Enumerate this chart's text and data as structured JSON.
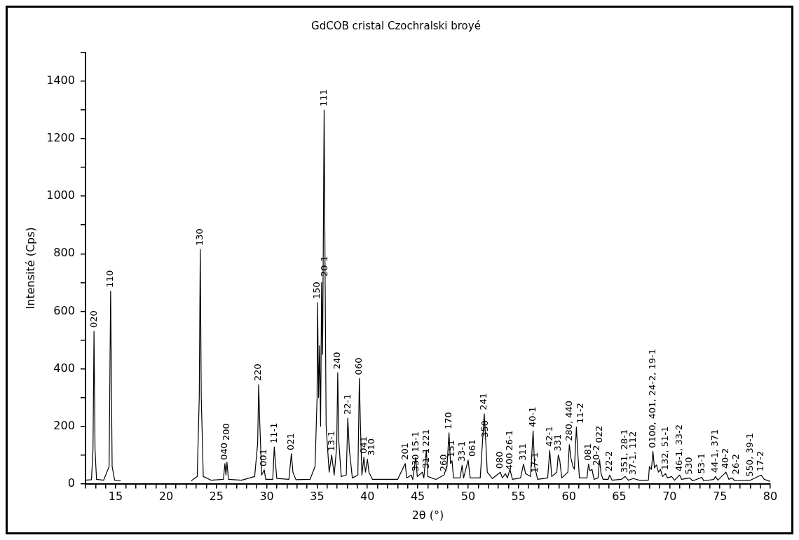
{
  "chart_data": {
    "type": "line",
    "title": "GdCOB cristal Czochralski broyé",
    "xlabel": "2θ (°)",
    "ylabel": "Intensité (Cps)",
    "xlim": [
      12,
      80
    ],
    "xticks": [
      {
        "value": 12,
        "label": null
      },
      {
        "value": 13,
        "label": null
      },
      {
        "value": 14,
        "label": null
      },
      15,
      {
        "value": 16,
        "label": null
      },
      {
        "value": 17,
        "label": null
      },
      {
        "value": 18,
        "label": null
      },
      {
        "value": 19,
        "label": null
      },
      20,
      {
        "value": 21,
        "label": null
      },
      {
        "value": 22,
        "label": null
      },
      {
        "value": 23,
        "label": null
      },
      {
        "value": 24,
        "label": null
      },
      25,
      {
        "value": 26,
        "label": null
      },
      {
        "value": 27,
        "label": null
      },
      {
        "value": 28,
        "label": null
      },
      {
        "value": 29,
        "label": null
      },
      30,
      {
        "value": 31,
        "label": null
      },
      {
        "value": 32,
        "label": null
      },
      {
        "value": 33,
        "label": null
      },
      {
        "value": 34,
        "label": null
      },
      35,
      {
        "value": 36,
        "label": null
      },
      {
        "value": 37,
        "label": null
      },
      {
        "value": 38,
        "label": null
      },
      {
        "value": 39,
        "label": null
      },
      40,
      {
        "value": 41,
        "label": null
      },
      {
        "value": 42,
        "label": null
      },
      {
        "value": 43,
        "label": null
      },
      {
        "value": 44,
        "label": null
      },
      45,
      {
        "value": 46,
        "label": null
      },
      {
        "value": 47,
        "label": null
      },
      {
        "value": 48,
        "label": null
      },
      {
        "value": 49,
        "label": null
      },
      50,
      {
        "value": 51,
        "label": null
      },
      {
        "value": 52,
        "label": null
      },
      {
        "value": 53,
        "label": null
      },
      {
        "value": 54,
        "label": null
      },
      55,
      {
        "value": 56,
        "label": null
      },
      {
        "value": 57,
        "label": null
      },
      {
        "value": 58,
        "label": null
      },
      {
        "value": 59,
        "label": null
      },
      60,
      {
        "value": 61,
        "label": null
      },
      {
        "value": 62,
        "label": null
      },
      {
        "value": 63,
        "label": null
      },
      {
        "value": 64,
        "label": null
      },
      65,
      {
        "value": 66,
        "label": null
      },
      {
        "value": 67,
        "label": null
      },
      {
        "value": 68,
        "label": null
      },
      {
        "value": 69,
        "label": null
      },
      70,
      {
        "value": 71,
        "label": null
      },
      {
        "value": 72,
        "label": null
      },
      {
        "value": 73,
        "label": null
      },
      {
        "value": 74,
        "label": null
      },
      75,
      {
        "value": 76,
        "label": null
      },
      {
        "value": 77,
        "label": null
      },
      {
        "value": 78,
        "label": null
      },
      {
        "value": 79,
        "label": null
      },
      80
    ],
    "ylim": [
      0,
      1500
    ],
    "yticks": [
      0,
      {
        "value": 100,
        "label": null
      },
      200,
      {
        "value": 300,
        "label": null
      },
      400,
      {
        "value": 500,
        "label": null
      },
      600,
      {
        "value": 700,
        "label": null
      },
      800,
      {
        "value": 900,
        "label": null
      },
      1000,
      {
        "value": 1100,
        "label": null
      },
      1200,
      {
        "value": 1300,
        "label": null
      },
      1400,
      {
        "value": 1500,
        "label": null
      }
    ],
    "grid": false,
    "legend": false,
    "marker": "none",
    "line_style": "solid",
    "series": [
      {
        "color": "#000000",
        "x": [
          12.0,
          12.6,
          12.75,
          12.85,
          12.95,
          13.1,
          13.8,
          14.35,
          14.5,
          14.65,
          14.9,
          15.5,
          15.8,
          22.5,
          23.1,
          23.3,
          23.4,
          23.5,
          23.7,
          24.5,
          25.7,
          25.85,
          25.95,
          26.05,
          26.2,
          27.5,
          28.8,
          29.1,
          29.2,
          29.3,
          29.5,
          29.75,
          29.9,
          30.6,
          30.75,
          30.85,
          31.0,
          32.2,
          32.45,
          32.6,
          32.9,
          34.3,
          34.8,
          35.0,
          35.05,
          35.15,
          35.25,
          35.35,
          35.45,
          35.55,
          35.7,
          35.8,
          35.9,
          36.2,
          36.45,
          36.7,
          36.95,
          37.05,
          37.15,
          37.4,
          37.9,
          38.05,
          38.2,
          38.5,
          39.05,
          39.2,
          39.3,
          39.45,
          39.65,
          39.8,
          40.0,
          40.15,
          40.5,
          43.0,
          43.75,
          43.9,
          44.35,
          44.5,
          44.8,
          44.95,
          45.45,
          45.6,
          45.85,
          46.0,
          46.8,
          47.6,
          47.9,
          48.1,
          48.25,
          48.4,
          48.55,
          49.2,
          49.4,
          49.55,
          50.0,
          50.2,
          51.2,
          51.6,
          51.75,
          51.9,
          52.4,
          53.2,
          53.4,
          53.7,
          53.9,
          54.15,
          54.4,
          55.2,
          55.5,
          55.7,
          56.2,
          56.45,
          56.6,
          56.9,
          57.9,
          58.1,
          58.3,
          58.8,
          58.95,
          59.1,
          59.3,
          59.9,
          60.05,
          60.2,
          60.4,
          60.55,
          60.75,
          60.9,
          61.05,
          61.8,
          61.95,
          62.1,
          62.3,
          62.5,
          62.9,
          63.05,
          63.2,
          63.4,
          63.9,
          64.05,
          64.3,
          65.2,
          65.6,
          65.9,
          66.4,
          67.0,
          67.9,
          68.0,
          68.2,
          68.35,
          68.5,
          68.7,
          68.9,
          69.1,
          69.3,
          69.6,
          69.8,
          70.2,
          70.5,
          71.0,
          71.2,
          72.0,
          72.3,
          73.2,
          73.4,
          74.4,
          74.55,
          74.8,
          75.6,
          75.9,
          76.2,
          76.5,
          78.0,
          79.1,
          79.4,
          80.0
        ],
        "values": [
          12,
          14,
          120,
          530,
          120,
          15,
          12,
          60,
          670,
          60,
          12,
          10,
          null,
          10,
          25,
          300,
          815,
          300,
          25,
          12,
          15,
          70,
          30,
          75,
          15,
          12,
          25,
          140,
          345,
          220,
          30,
          48,
          15,
          15,
          128,
          80,
          18,
          15,
          104,
          40,
          14,
          15,
          60,
          300,
          630,
          300,
          480,
          200,
          700,
          450,
          1300,
          708,
          200,
          40,
          100,
          30,
          130,
          386,
          150,
          25,
          30,
          228,
          120,
          20,
          30,
          366,
          210,
          30,
          92,
          40,
          85,
          40,
          15,
          15,
          70,
          20,
          30,
          15,
          92,
          25,
          40,
          20,
          117,
          25,
          15,
          30,
          60,
          177,
          70,
          80,
          20,
          20,
          64,
          20,
          82,
          20,
          20,
          243,
          148,
          40,
          18,
          40,
          20,
          35,
          20,
          50,
          15,
          20,
          68,
          35,
          25,
          184,
          60,
          15,
          20,
          116,
          25,
          40,
          100,
          80,
          20,
          40,
          136,
          90,
          60,
          50,
          197,
          100,
          20,
          20,
          68,
          45,
          50,
          15,
          20,
          83,
          35,
          15,
          15,
          30,
          12,
          15,
          25,
          12,
          18,
          12,
          12,
          60,
          50,
          112,
          55,
          65,
          40,
          50,
          25,
          35,
          20,
          25,
          12,
          30,
          15,
          20,
          10,
          22,
          10,
          15,
          25,
          12,
          40,
          15,
          20,
          10,
          12,
          30,
          15,
          8
        ]
      }
    ],
    "annotations": [
      {
        "text": "020",
        "x": 12.85,
        "y": 530
      },
      {
        "text": "110",
        "x": 14.5,
        "y": 670
      },
      {
        "text": "130",
        "x": 23.4,
        "y": 815
      },
      {
        "text": "040",
        "x": 25.85,
        "y": 70
      },
      {
        "text": "200",
        "x": 26.05,
        "y": 75
      },
      {
        "text": "220",
        "x": 29.2,
        "y": 345
      },
      {
        "text": "001",
        "x": 29.75,
        "y": 48
      },
      {
        "text": "11-1",
        "x": 30.75,
        "y": 128
      },
      {
        "text": "021",
        "x": 32.45,
        "y": 104
      },
      {
        "text": "150",
        "x": 35.05,
        "y": 630
      },
      {
        "text": "111",
        "x": 35.7,
        "y": 1300
      },
      {
        "text": "20-1",
        "x": 35.8,
        "y": 708
      },
      {
        "text": "13-1",
        "x": 36.45,
        "y": 100
      },
      {
        "text": "240",
        "x": 37.05,
        "y": 386
      },
      {
        "text": "22-1",
        "x": 38.05,
        "y": 228
      },
      {
        "text": "060",
        "x": 39.2,
        "y": 366
      },
      {
        "text": "041",
        "x": 39.65,
        "y": 92
      },
      {
        "text": "310",
        "x": 40.0,
        "y": 85
      },
      {
        "text": "201",
        "x": 43.75,
        "y": 70
      },
      {
        "text": "330",
        "x": 44.35,
        "y": 30
      },
      {
        "text": "15-1",
        "x": 44.8,
        "y": 92
      },
      {
        "text": "31-1",
        "x": 45.45,
        "y": 40
      },
      {
        "text": "221",
        "x": 45.85,
        "y": 117
      },
      {
        "text": "260",
        "x": 47.6,
        "y": 30
      },
      {
        "text": "170",
        "x": 48.1,
        "y": 177
      },
      {
        "text": "151",
        "x": 48.4,
        "y": 80
      },
      {
        "text": "33-1",
        "x": 49.4,
        "y": 64
      },
      {
        "text": "061",
        "x": 50.0,
        "y": 82
      },
      {
        "text": "241",
        "x": 51.6,
        "y": 243
      },
      {
        "text": "350",
        "x": 51.75,
        "y": 148
      },
      {
        "text": "080",
        "x": 53.2,
        "y": 40
      },
      {
        "text": "400",
        "x": 53.7,
        "y": 35
      },
      {
        "text": "26-1",
        "x": 54.15,
        "y": 50
      },
      {
        "text": "311",
        "x": 55.5,
        "y": 68
      },
      {
        "text": "17-1",
        "x": 56.2,
        "y": 25
      },
      {
        "text": "40-1",
        "x": 56.45,
        "y": 184
      },
      {
        "text": "42-1",
        "x": 58.1,
        "y": 116
      },
      {
        "text": "331",
        "x": 58.95,
        "y": 100
      },
      {
        "text": "280, 440",
        "x": 60.05,
        "y": 136
      },
      {
        "text": "11-2",
        "x": 60.75,
        "y": 197
      },
      {
        "text": "081",
        "x": 61.95,
        "y": 68
      },
      {
        "text": "20-2",
        "x": 62.3,
        "y": 50
      },
      {
        "text": "022",
        "x": 63.05,
        "y": 83
      },
      {
        "text": "22-2",
        "x": 64.05,
        "y": 30
      },
      {
        "text": "351, 28-1",
        "x": 65.6,
        "y": 25
      },
      {
        "text": "37-1, 112",
        "x": 66.4,
        "y": 18
      },
      {
        "text": "0100, 401, 24-2, 19-1",
        "x": 68.35,
        "y": 112
      },
      {
        "text": "132, 51-1",
        "x": 69.6,
        "y": 35
      },
      {
        "text": "46-1, 33-2",
        "x": 71.0,
        "y": 30
      },
      {
        "text": "530",
        "x": 72.0,
        "y": 20
      },
      {
        "text": "53-1",
        "x": 73.2,
        "y": 22
      },
      {
        "text": "44-1, 371",
        "x": 74.55,
        "y": 25
      },
      {
        "text": "40-2",
        "x": 75.6,
        "y": 40
      },
      {
        "text": "26-2",
        "x": 76.2,
        "y": 20
      },
      {
        "text": "550, 39-1",
        "x": 78.0,
        "y": 12
      },
      {
        "text": "17-2",
        "x": 79.1,
        "y": 30
      }
    ]
  }
}
